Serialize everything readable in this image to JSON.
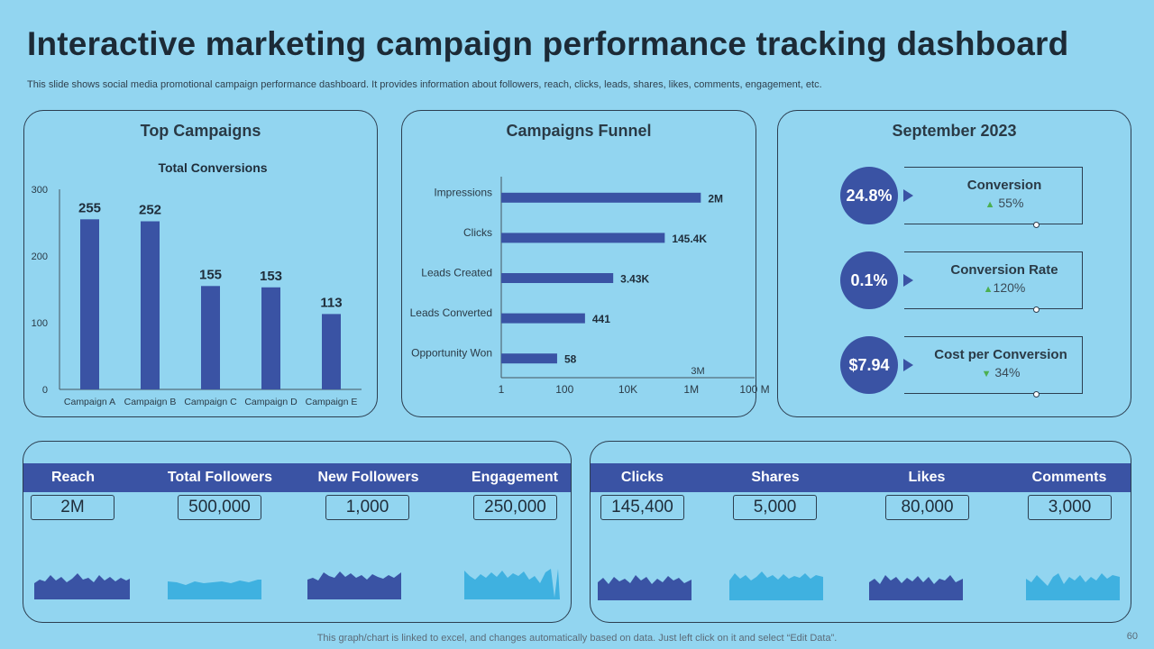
{
  "title": "Interactive marketing campaign performance tracking dashboard",
  "subtitle": "This slide shows social media promotional campaign performance dashboard. It provides information about followers, reach, clicks, leads, shares, likes, comments, engagement, etc.",
  "panels": {
    "top_campaigns": "Top Campaigns",
    "funnel": "Campaigns Funnel",
    "month": "September 2023"
  },
  "chart_data": [
    {
      "type": "bar",
      "title": "Total Conversions",
      "categories": [
        "Campaign A",
        "Campaign B",
        "Campaign C",
        "Campaign D",
        "Campaign E"
      ],
      "values": [
        255,
        252,
        155,
        153,
        113
      ],
      "ylim": [
        0,
        300
      ],
      "yticks": [
        0,
        100,
        200,
        300
      ],
      "color": "#3a53a4"
    },
    {
      "type": "bar",
      "orientation": "horizontal",
      "scale": "log",
      "categories": [
        "Impressions",
        "Clicks",
        "Leads Created",
        "Leads Converted",
        "Opportunity Won"
      ],
      "values": [
        2000000,
        145400,
        3430,
        441,
        58
      ],
      "labels": [
        "2M",
        "145.4K",
        "3.43K",
        "441",
        "58"
      ],
      "xticks": [
        1,
        100,
        10000,
        1000000,
        100000000
      ],
      "xtick_labels": [
        "1",
        "100",
        "10K",
        "1M",
        "100 M"
      ],
      "annotation": "3M",
      "color": "#3a53a4"
    }
  ],
  "kpis": [
    {
      "value": "24.8%",
      "label": "Conversion",
      "delta": "55%",
      "dir": "▲"
    },
    {
      "value": "0.1%",
      "label": "Conversion Rate",
      "delta": "120%",
      "dir": "▲"
    },
    {
      "value": "$7.94",
      "label": "Cost per Conversion",
      "delta": "34%",
      "dir": "▼"
    }
  ],
  "social_left": [
    {
      "label": "Reach",
      "value": "2M"
    },
    {
      "label": "Total Followers",
      "value": "500,000"
    },
    {
      "label": "New Followers",
      "value": "1,000"
    },
    {
      "label": "Engagement",
      "value": "250,000"
    }
  ],
  "social_right": [
    {
      "label": "Clicks",
      "value": "145,400"
    },
    {
      "label": "Shares",
      "value": "5,000"
    },
    {
      "label": "Likes",
      "value": "80,000"
    },
    {
      "label": "Comments",
      "value": "3,000"
    }
  ],
  "colors": {
    "dark_blue": "#3a53a4",
    "light_blue": "#3fb1e0",
    "background": "#92d5f0"
  },
  "footer": "This graph/chart is linked to excel,  and changes automatically based on data. Just left click on it and select “Edit Data”.",
  "page_number": "60"
}
